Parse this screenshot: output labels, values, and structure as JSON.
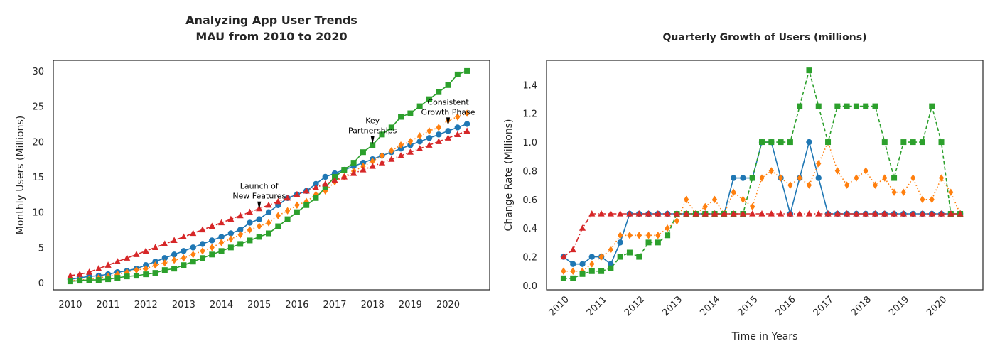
{
  "chart_data": [
    {
      "type": "line",
      "title": "Analyzing App User Trends\nMAU from 2010 to 2020",
      "xlabel": "",
      "ylabel": "Monthly Users (Millions)",
      "xlim": [
        2009.55,
        2021.1
      ],
      "ylim": [
        -1.0,
        31.5
      ],
      "x_ticks": [
        2010,
        2011,
        2012,
        2013,
        2014,
        2015,
        2016,
        2017,
        2018,
        2019,
        2020
      ],
      "y_ticks": [
        0,
        5,
        10,
        15,
        20,
        25,
        30
      ],
      "grid": false,
      "x": [
        2010.0,
        2010.25,
        2010.5,
        2010.75,
        2011.0,
        2011.25,
        2011.5,
        2011.75,
        2012.0,
        2012.25,
        2012.5,
        2012.75,
        2013.0,
        2013.25,
        2013.5,
        2013.75,
        2014.0,
        2014.25,
        2014.5,
        2014.75,
        2015.0,
        2015.25,
        2015.5,
        2015.75,
        2016.0,
        2016.25,
        2016.5,
        2016.75,
        2017.0,
        2017.25,
        2017.5,
        2017.75,
        2018.0,
        2018.25,
        2018.5,
        2018.75,
        2019.0,
        2019.25,
        2019.5,
        2019.75,
        2020.0,
        2020.25,
        2020.5
      ],
      "series": [
        {
          "color": "#1f77b4",
          "marker": "circle",
          "dash": "solid",
          "values": [
            0.5,
            0.7,
            0.9,
            1.0,
            1.2,
            1.5,
            1.7,
            2.0,
            2.5,
            3.0,
            3.5,
            4.0,
            4.5,
            5.0,
            5.5,
            6.0,
            6.5,
            7.0,
            7.5,
            8.5,
            9.0,
            10.0,
            11.0,
            12.0,
            12.5,
            13.0,
            14.0,
            15.0,
            15.5,
            16.0,
            16.5,
            17.0,
            17.5,
            18.0,
            18.5,
            19.0,
            19.5,
            20.0,
            20.5,
            21.0,
            21.5,
            22.0,
            22.5
          ]
        },
        {
          "color": "#ff7f0e",
          "marker": "diamond",
          "dash": "dotted",
          "values": [
            0.3,
            0.4,
            0.5,
            0.7,
            0.9,
            1.2,
            1.5,
            1.8,
            2.0,
            2.5,
            2.8,
            3.2,
            3.5,
            4.0,
            4.5,
            5.0,
            5.7,
            6.2,
            6.8,
            7.5,
            8.0,
            8.5,
            9.5,
            10.2,
            11.0,
            11.5,
            12.5,
            13.0,
            14.3,
            15.0,
            15.8,
            16.5,
            17.2,
            18.0,
            18.7,
            19.5,
            20.0,
            20.8,
            21.5,
            22.0,
            23.0,
            23.5,
            24.0
          ]
        },
        {
          "color": "#2ca02c",
          "marker": "square",
          "dash": "solid",
          "values": [
            0.2,
            0.3,
            0.4,
            0.4,
            0.5,
            0.7,
            0.9,
            1.0,
            1.2,
            1.4,
            1.8,
            2.0,
            2.5,
            3.0,
            3.5,
            4.0,
            4.5,
            5.0,
            5.5,
            6.0,
            6.5,
            7.0,
            8.0,
            9.0,
            10.0,
            11.0,
            12.0,
            13.5,
            15.0,
            16.0,
            17.0,
            18.5,
            19.5,
            21.0,
            22.0,
            23.5,
            24.0,
            25.0,
            26.0,
            27.0,
            28.0,
            29.5,
            30.0
          ]
        },
        {
          "color": "#d62728",
          "marker": "triangle",
          "dash": "dashdot",
          "values": [
            1.0,
            1.2,
            1.5,
            2.0,
            2.5,
            3.0,
            3.5,
            4.0,
            4.5,
            5.0,
            5.5,
            6.0,
            6.5,
            7.0,
            7.5,
            8.0,
            8.5,
            9.0,
            9.5,
            10.0,
            10.5,
            11.0,
            11.5,
            12.0,
            12.5,
            13.0,
            13.5,
            14.0,
            14.5,
            15.0,
            15.5,
            16.0,
            16.5,
            17.0,
            17.5,
            18.0,
            18.5,
            19.0,
            19.5,
            20.0,
            20.5,
            21.0,
            21.5
          ]
        }
      ],
      "annotations": [
        {
          "text": "Launch of\nNew Features",
          "x": 2015.0,
          "y": 10.3
        },
        {
          "text": "Key\nPartnerships",
          "x": 2018.0,
          "y": 19.6
        },
        {
          "text": "Consistent\nGrowth Phase",
          "x": 2020.0,
          "y": 22.2
        }
      ]
    },
    {
      "type": "line",
      "title": "Quarterly Growth of Users (millions)",
      "xlabel": "Time in Years",
      "ylabel": "Change Rate (Millions)",
      "xlim": [
        2009.55,
        2021.1
      ],
      "ylim": [
        -0.03,
        1.57
      ],
      "x_ticks": [
        2010,
        2011,
        2012,
        2013,
        2014,
        2015,
        2016,
        2017,
        2018,
        2019,
        2020
      ],
      "y_ticks": [
        0.0,
        0.2,
        0.4,
        0.6,
        0.8,
        1.0,
        1.2,
        1.4
      ],
      "y_tick_labels": [
        "0.0",
        "0.2",
        "0.4",
        "0.6",
        "0.8",
        "1.0",
        "1.2",
        "1.4"
      ],
      "grid": false,
      "x": [
        2010.0,
        2010.25,
        2010.5,
        2010.75,
        2011.0,
        2011.25,
        2011.5,
        2011.75,
        2012.0,
        2012.25,
        2012.5,
        2012.75,
        2013.0,
        2013.25,
        2013.5,
        2013.75,
        2014.0,
        2014.25,
        2014.5,
        2014.75,
        2015.0,
        2015.25,
        2015.5,
        2015.75,
        2016.0,
        2016.25,
        2016.5,
        2016.75,
        2017.0,
        2017.25,
        2017.5,
        2017.75,
        2018.0,
        2018.25,
        2018.5,
        2018.75,
        2019.0,
        2019.25,
        2019.5,
        2019.75,
        2020.0,
        2020.25,
        2020.5
      ],
      "series": [
        {
          "color": "#1f77b4",
          "marker": "circle",
          "dash": "solid",
          "values": [
            0.2,
            0.15,
            0.15,
            0.2,
            0.2,
            0.15,
            0.3,
            0.5,
            0.5,
            0.5,
            0.5,
            0.5,
            0.5,
            0.5,
            0.5,
            0.5,
            0.5,
            0.5,
            0.75,
            0.75,
            0.75,
            1.0,
            1.0,
            0.75,
            0.5,
            0.75,
            1.0,
            0.75,
            0.5,
            0.5,
            0.5,
            0.5,
            0.5,
            0.5,
            0.5,
            0.5,
            0.5,
            0.5,
            0.5,
            0.5,
            0.5,
            0.5,
            0.5
          ]
        },
        {
          "color": "#ff7f0e",
          "marker": "diamond",
          "dash": "dotted",
          "values": [
            0.1,
            0.1,
            0.1,
            0.15,
            0.2,
            0.25,
            0.35,
            0.35,
            0.35,
            0.35,
            0.35,
            0.4,
            0.45,
            0.6,
            0.5,
            0.55,
            0.6,
            0.5,
            0.65,
            0.6,
            0.55,
            0.75,
            0.8,
            0.75,
            0.7,
            0.75,
            0.7,
            0.85,
            1.0,
            0.8,
            0.7,
            0.75,
            0.8,
            0.7,
            0.75,
            0.65,
            0.65,
            0.75,
            0.6,
            0.6,
            0.75,
            0.65,
            0.5
          ]
        },
        {
          "color": "#2ca02c",
          "marker": "square",
          "dash": "dashed",
          "values": [
            0.05,
            0.05,
            0.08,
            0.1,
            0.1,
            0.12,
            0.2,
            0.23,
            0.2,
            0.3,
            0.3,
            0.35,
            0.5,
            0.5,
            0.5,
            0.5,
            0.5,
            0.5,
            0.5,
            0.5,
            0.75,
            1.0,
            1.0,
            1.0,
            1.0,
            1.25,
            1.5,
            1.25,
            1.0,
            1.25,
            1.25,
            1.25,
            1.25,
            1.25,
            1.0,
            0.75,
            1.0,
            1.0,
            1.0,
            1.25,
            1.0,
            0.5,
            0.5
          ]
        },
        {
          "color": "#d62728",
          "marker": "triangle",
          "dash": "dashdot",
          "values": [
            0.2,
            0.25,
            0.4,
            0.5,
            0.5,
            0.5,
            0.5,
            0.5,
            0.5,
            0.5,
            0.5,
            0.5,
            0.5,
            0.5,
            0.5,
            0.5,
            0.5,
            0.5,
            0.5,
            0.5,
            0.5,
            0.5,
            0.5,
            0.5,
            0.5,
            0.5,
            0.5,
            0.5,
            0.5,
            0.5,
            0.5,
            0.5,
            0.5,
            0.5,
            0.5,
            0.5,
            0.5,
            0.5,
            0.5,
            0.5,
            0.5,
            0.5,
            0.5
          ]
        }
      ]
    }
  ]
}
